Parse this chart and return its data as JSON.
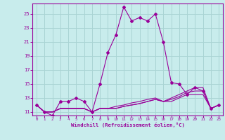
{
  "title": "",
  "xlabel": "Windchill (Refroidissement éolien,°C)",
  "background_color": "#c8ecec",
  "grid_color": "#aad4d4",
  "line_color": "#990099",
  "x_hours": [
    0,
    1,
    2,
    3,
    4,
    5,
    6,
    7,
    8,
    9,
    10,
    11,
    12,
    13,
    14,
    15,
    16,
    17,
    18,
    19,
    20,
    21,
    22,
    23
  ],
  "main_line": [
    12.0,
    11.0,
    10.5,
    12.5,
    12.5,
    13.0,
    12.5,
    11.0,
    15.0,
    19.5,
    22.0,
    26.0,
    24.0,
    24.5,
    24.0,
    25.0,
    21.0,
    15.2,
    15.0,
    13.5,
    14.5,
    14.0,
    11.5,
    12.0
  ],
  "flat_line1": [
    12.0,
    11.0,
    11.0,
    11.5,
    11.5,
    11.5,
    11.5,
    11.0,
    11.5,
    11.5,
    11.5,
    11.8,
    12.0,
    12.2,
    12.5,
    12.8,
    12.5,
    12.5,
    13.0,
    13.5,
    13.5,
    13.5,
    11.5,
    12.0
  ],
  "flat_line2": [
    12.0,
    11.0,
    11.0,
    11.5,
    11.5,
    11.5,
    11.5,
    11.0,
    11.5,
    11.5,
    11.5,
    11.8,
    12.0,
    12.2,
    12.5,
    12.8,
    12.5,
    12.8,
    13.2,
    13.8,
    14.0,
    14.0,
    11.5,
    12.0
  ],
  "flat_line3": [
    12.0,
    11.0,
    11.0,
    11.5,
    11.5,
    11.5,
    11.5,
    11.0,
    11.5,
    11.5,
    11.8,
    12.0,
    12.3,
    12.5,
    12.8,
    13.0,
    12.5,
    13.0,
    13.5,
    14.0,
    14.5,
    14.5,
    11.5,
    12.0
  ],
  "ylim": [
    10.5,
    26.5
  ],
  "yticks": [
    11,
    13,
    15,
    17,
    19,
    21,
    23,
    25
  ],
  "xticks": [
    0,
    1,
    2,
    3,
    4,
    5,
    6,
    7,
    8,
    9,
    10,
    11,
    12,
    13,
    14,
    15,
    16,
    17,
    18,
    19,
    20,
    21,
    22,
    23
  ]
}
